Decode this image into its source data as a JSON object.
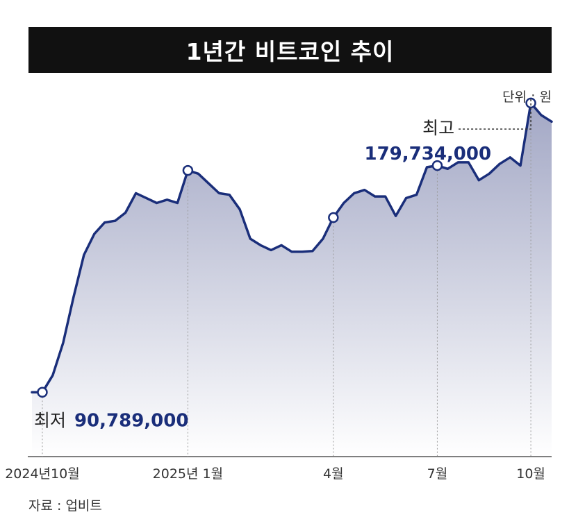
{
  "title": "1년간 비트코인 추이",
  "unit_label": "단위 : 원",
  "source_label": "자료 : 업비트",
  "chart_data": {
    "type": "area",
    "title": "1년간 비트코인 추이",
    "unit": "원",
    "x_ticks": [
      "2024년10월",
      "2025년 1월",
      "4월",
      "7월",
      "10월"
    ],
    "values": [
      90789000,
      90789000,
      96000000,
      106000000,
      120000000,
      133000000,
      139500000,
      143000000,
      143500000,
      146000000,
      152000000,
      150500000,
      149000000,
      150000000,
      149000000,
      159000000,
      158000000,
      155000000,
      152000000,
      151500000,
      147000000,
      138000000,
      136000000,
      134500000,
      136000000,
      134000000,
      134000000,
      134200000,
      138000000,
      144500000,
      149000000,
      152000000,
      153000000,
      151000000,
      151000000,
      145000000,
      150500000,
      151500000,
      160000000,
      160500000,
      159500000,
      161500000,
      161500000,
      156000000,
      158000000,
      161000000,
      163000000,
      160500000,
      179734000,
      176000000,
      174000000
    ],
    "tick_indices": [
      1,
      15,
      29,
      39,
      48
    ],
    "markers": [
      {
        "index": 1,
        "label": "최저",
        "value_text": "90,789,000"
      },
      {
        "index": 48,
        "label": "최고",
        "value_text": "179,734,000"
      }
    ],
    "extra_markers": [
      15,
      29,
      39
    ],
    "ylim": [
      71000000,
      189000000
    ],
    "grid": false,
    "colors": {
      "line": "#1a2e7a",
      "fill_top": "#9ea3c2",
      "fill_bottom": "#ffffff",
      "value_text": "#1a2e7a"
    }
  }
}
